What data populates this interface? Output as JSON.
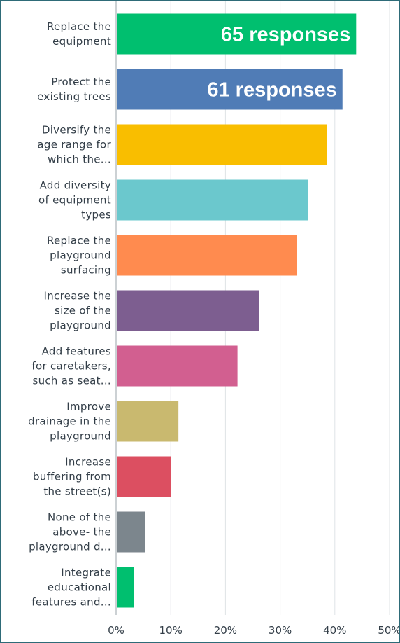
{
  "chart_data": {
    "type": "bar",
    "orientation": "horizontal",
    "categories": [
      [
        "Replace the",
        "equipment"
      ],
      [
        "Protect the",
        "existing trees"
      ],
      [
        "Diversify the",
        "age range for",
        "which the..."
      ],
      [
        "Add diversity",
        "of equipment",
        "types"
      ],
      [
        "Replace the",
        "playground",
        "surfacing"
      ],
      [
        "Increase the",
        "size of the",
        "playground"
      ],
      [
        "Add features",
        "for caretakers,",
        "such as seat..."
      ],
      [
        "Improve",
        "drainage in the",
        "playground"
      ],
      [
        "Increase",
        "buffering from",
        "the street(s)"
      ],
      [
        "None of the",
        "above- the",
        "playground d..."
      ],
      [
        "Integrate",
        "educational",
        "features and..."
      ]
    ],
    "values": [
      43.9,
      41.4,
      38.6,
      35.1,
      33.0,
      26.2,
      22.2,
      11.4,
      10.1,
      5.3,
      3.2
    ],
    "colors": [
      "#00bf6f",
      "#507cb6",
      "#f9be00",
      "#6bc8cd",
      "#ff8b4f",
      "#7d5e90",
      "#d25f90",
      "#c9b96f",
      "#dc4f61",
      "#7c868d",
      "#00bf6f"
    ],
    "xticks": [
      "0%",
      "10%",
      "20%",
      "30%",
      "40%",
      "50%"
    ],
    "xlim": [
      0,
      50
    ],
    "grid": true,
    "annotations": [
      {
        "category_index": 0,
        "text": "65 responses"
      },
      {
        "category_index": 1,
        "text": "61 responses"
      }
    ],
    "title": "",
    "xlabel": "",
    "ylabel": ""
  }
}
